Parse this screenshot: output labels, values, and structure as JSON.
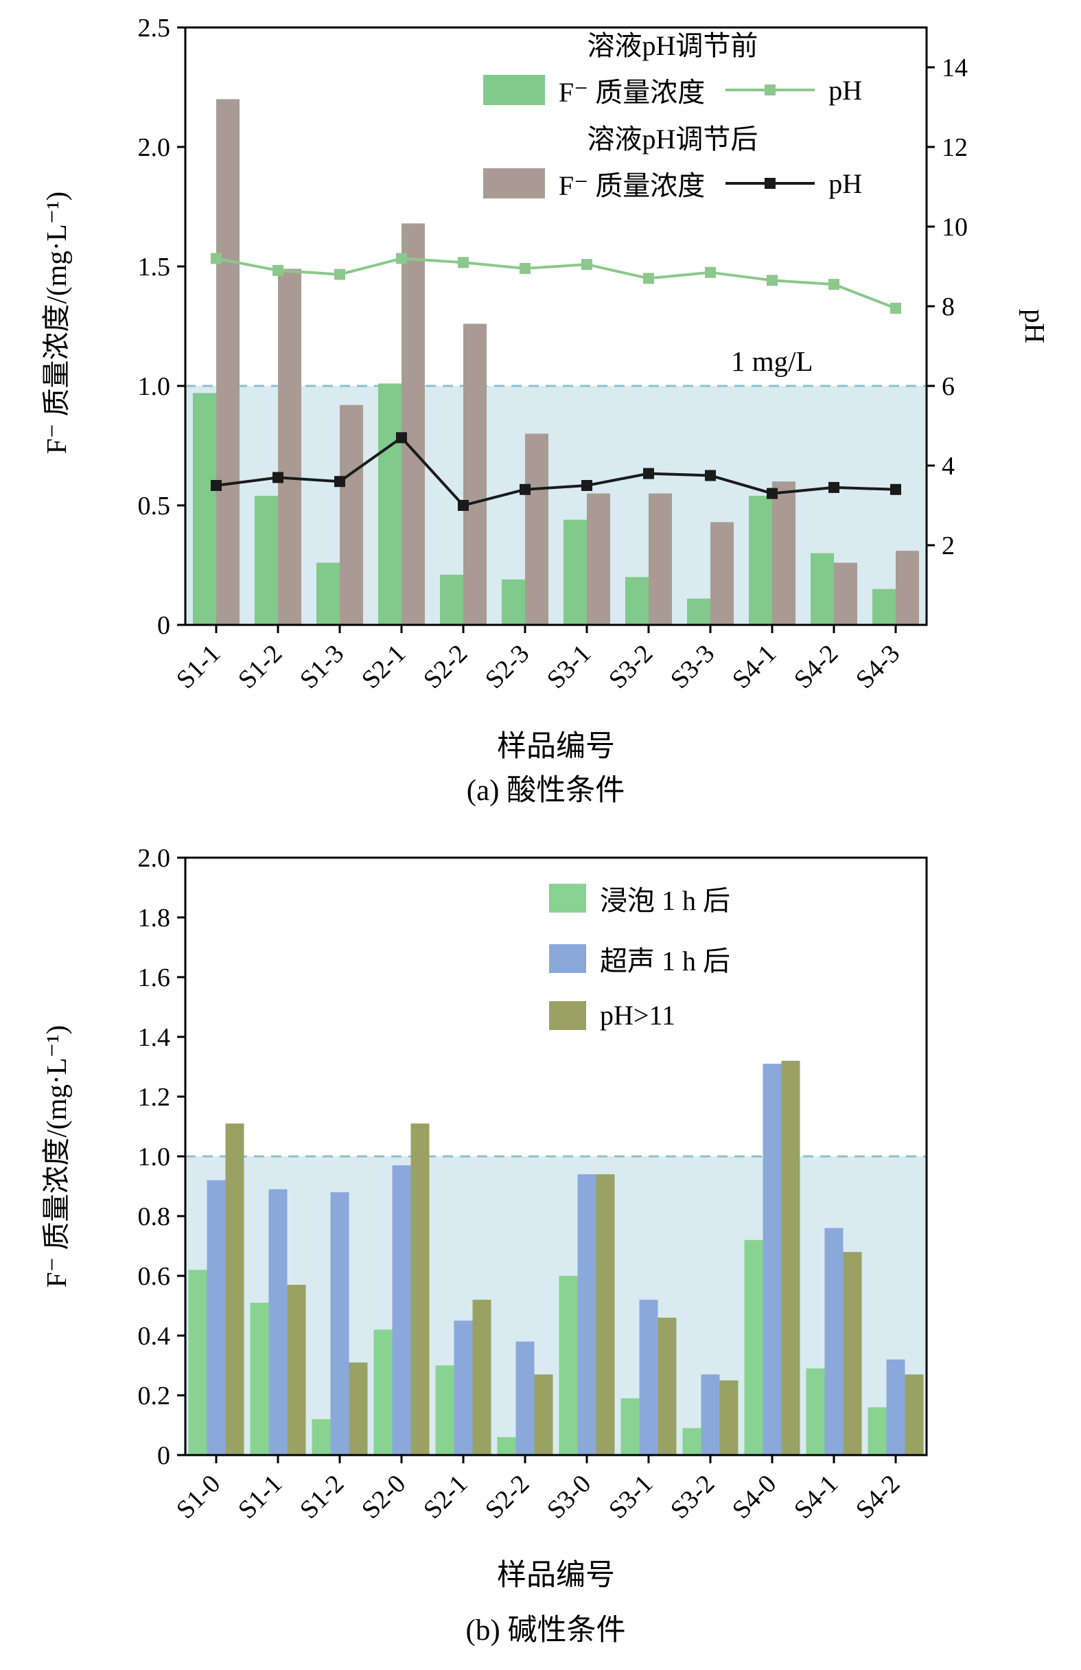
{
  "page": {
    "background": "#ffffff"
  },
  "chart_data": [
    {
      "id": "chart-a",
      "type": "bar+line",
      "caption": "(a) 酸性条件",
      "xlabel": "样品编号",
      "ylabel_left": "F⁻ 质量浓度/(mg·L⁻¹)",
      "ylabel_right": "pH",
      "categories": [
        "S1-1",
        "S1-2",
        "S1-3",
        "S2-1",
        "S2-2",
        "S2-3",
        "S3-1",
        "S3-2",
        "S3-3",
        "S4-1",
        "S4-2",
        "S4-3"
      ],
      "ylim_left": [
        0,
        2.5
      ],
      "ylim_right": [
        0,
        15
      ],
      "yticks_left": {
        "values": [
          0,
          0.5,
          1.0,
          1.5,
          2.0,
          2.5
        ],
        "labels": [
          "0",
          "0.5",
          "1.0",
          "1.5",
          "2.0",
          "2.5"
        ]
      },
      "yticks_right": {
        "values": [
          2,
          4,
          6,
          8,
          10,
          12,
          14
        ],
        "labels": [
          "2",
          "4",
          "6",
          "8",
          "10",
          "12",
          "14"
        ]
      },
      "bar_series": [
        {
          "name": "溶液pH调节前 F⁻ 质量浓度",
          "color": "#82c98c",
          "values": [
            0.97,
            0.54,
            0.26,
            1.01,
            0.21,
            0.19,
            0.44,
            0.2,
            0.11,
            0.54,
            0.3,
            0.15
          ]
        },
        {
          "name": "溶液pH调节后 F⁻ 质量浓度",
          "color": "#a99b93",
          "values": [
            2.2,
            1.49,
            0.92,
            1.68,
            1.26,
            0.8,
            0.55,
            0.55,
            0.43,
            0.6,
            0.26,
            0.31
          ]
        }
      ],
      "line_series": [
        {
          "name": "溶液pH调节前 pH",
          "color": "#8cc88c",
          "axis": "right",
          "values": [
            9.2,
            8.9,
            8.8,
            9.2,
            9.1,
            8.95,
            9.05,
            8.7,
            8.85,
            8.65,
            8.55,
            7.95
          ]
        },
        {
          "name": "溶液pH调节后 pH",
          "color": "#1a1a1a",
          "axis": "right",
          "values": [
            3.5,
            3.7,
            3.6,
            4.7,
            3.0,
            3.4,
            3.5,
            3.8,
            3.75,
            3.3,
            3.45,
            3.4
          ]
        }
      ],
      "reference": {
        "value": 1.0,
        "label": "1 mg/L",
        "fill": "#d9eaf1",
        "line_color": "#8fbfce"
      },
      "legend": {
        "mode": "grouped",
        "groups": [
          {
            "title": "溶液pH调节前",
            "items": [
              {
                "type": "bar",
                "color": "#82c98c",
                "label": "F⁻ 质量浓度"
              },
              {
                "type": "line",
                "color": "#8cc88c",
                "label": "pH"
              }
            ]
          },
          {
            "title": "溶液pH调节后",
            "items": [
              {
                "type": "bar",
                "color": "#a99b93",
                "label": "F⁻ 质量浓度"
              },
              {
                "type": "line",
                "color": "#1a1a1a",
                "label": "pH"
              }
            ]
          }
        ]
      },
      "grid": false,
      "legend_position": "top-center"
    },
    {
      "id": "chart-b",
      "type": "bar",
      "caption": "(b) 碱性条件",
      "xlabel": "样品编号",
      "ylabel_left": "F⁻ 质量浓度/(mg·L⁻¹)",
      "categories": [
        "S1-0",
        "S1-1",
        "S1-2",
        "S2-0",
        "S2-1",
        "S2-2",
        "S3-0",
        "S3-1",
        "S3-2",
        "S4-0",
        "S4-1",
        "S4-2"
      ],
      "ylim_left": [
        0,
        2.0
      ],
      "yticks_left": {
        "values": [
          0,
          0.2,
          0.4,
          0.6,
          0.8,
          1.0,
          1.2,
          1.4,
          1.6,
          1.8,
          2.0
        ],
        "labels": [
          "0",
          "0.2",
          "0.4",
          "0.6",
          "0.8",
          "1.0",
          "1.2",
          "1.4",
          "1.6",
          "1.8",
          "2.0"
        ]
      },
      "bar_series": [
        {
          "name": "浸泡 1 h 后",
          "color": "#88d391",
          "values": [
            0.62,
            0.51,
            0.12,
            0.42,
            0.3,
            0.06,
            0.6,
            0.19,
            0.09,
            0.72,
            0.29,
            0.16
          ]
        },
        {
          "name": "超声 1 h 后",
          "color": "#8ba8db",
          "values": [
            0.92,
            0.89,
            0.88,
            0.97,
            0.45,
            0.38,
            0.94,
            0.52,
            0.27,
            1.31,
            0.76,
            0.32
          ]
        },
        {
          "name": "pH>11",
          "color": "#9aa263",
          "values": [
            1.11,
            0.57,
            0.31,
            1.11,
            0.52,
            0.27,
            0.94,
            0.46,
            0.25,
            1.32,
            0.68,
            0.27
          ]
        }
      ],
      "reference": {
        "value": 1.0,
        "label": "",
        "fill": "#d9eaf1",
        "line_color": "#8fbfce"
      },
      "legend": {
        "mode": "stacked",
        "groups": [
          {
            "title": "",
            "items": [
              {
                "type": "bar",
                "color": "#88d391",
                "label": "浸泡 1 h 后"
              },
              {
                "type": "bar",
                "color": "#8ba8db",
                "label": "超声 1 h 后"
              },
              {
                "type": "bar",
                "color": "#9aa263",
                "label": "pH>11"
              }
            ]
          }
        ]
      },
      "grid": false,
      "legend_position": "top-right"
    }
  ]
}
